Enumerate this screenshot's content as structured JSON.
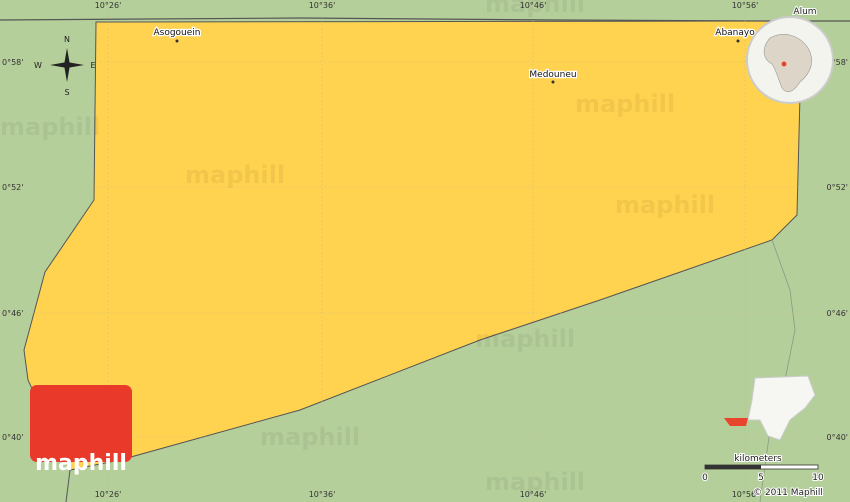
{
  "graticule": {
    "longitudes": [
      "10°26'",
      "10°36'",
      "10°46'",
      "10°56'"
    ],
    "latitudes": [
      "0°58'",
      "0°52'",
      "0°46'",
      "0°40'"
    ]
  },
  "places": [
    {
      "label": "Asogouein"
    },
    {
      "label": "Medouneu"
    },
    {
      "label": "Abanayo"
    },
    {
      "label": "Alum"
    }
  ],
  "compass": {
    "n": "N",
    "s": "S",
    "e": "E",
    "w": "W"
  },
  "logo": "maphill",
  "watermark": "maphill",
  "scale": {
    "unit": "kilometers",
    "ticks": [
      "0",
      "5",
      "10"
    ]
  },
  "copyright": "© 2011 Maphill"
}
